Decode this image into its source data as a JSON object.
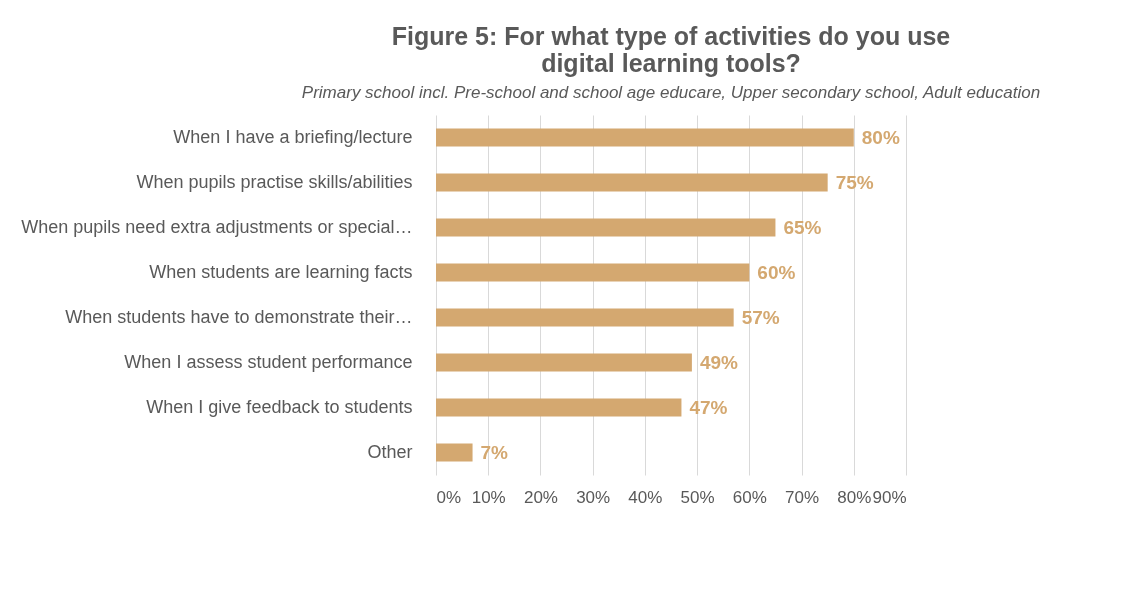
{
  "chart_data": {
    "type": "bar",
    "orientation": "horizontal",
    "title": "Figure 5: For what type of activities do you use\ndigital learning tools?",
    "subtitle": "Primary school incl. Pre-school and school age educare, Upper secondary school, Adult education",
    "categories": [
      "When I have a briefing/lecture",
      "When pupils practise skills/abilities",
      "When pupils need extra adjustments or special…",
      "When students are learning facts",
      "When students have to demonstrate their…",
      "When I assess student performance",
      "When I give feedback to students",
      "Other"
    ],
    "values": [
      80,
      75,
      65,
      60,
      57,
      49,
      47,
      7
    ],
    "value_labels": [
      "80%",
      "75%",
      "65%",
      "60%",
      "57%",
      "49%",
      "47%",
      "7%"
    ],
    "color": "#d4a870",
    "xlim": [
      0,
      90
    ],
    "xticks": [
      {
        "value": 0,
        "label": "0%"
      },
      {
        "value": 10,
        "label": "10%"
      },
      {
        "value": 20,
        "label": "20%"
      },
      {
        "value": 30,
        "label": "30%"
      },
      {
        "value": 40,
        "label": "40%"
      },
      {
        "value": 50,
        "label": "50%"
      },
      {
        "value": 60,
        "label": "60%"
      },
      {
        "value": 70,
        "label": "70%"
      },
      {
        "value": 80,
        "label": "80%"
      },
      {
        "value": 90,
        "label": "90%"
      }
    ],
    "grid": "x"
  }
}
